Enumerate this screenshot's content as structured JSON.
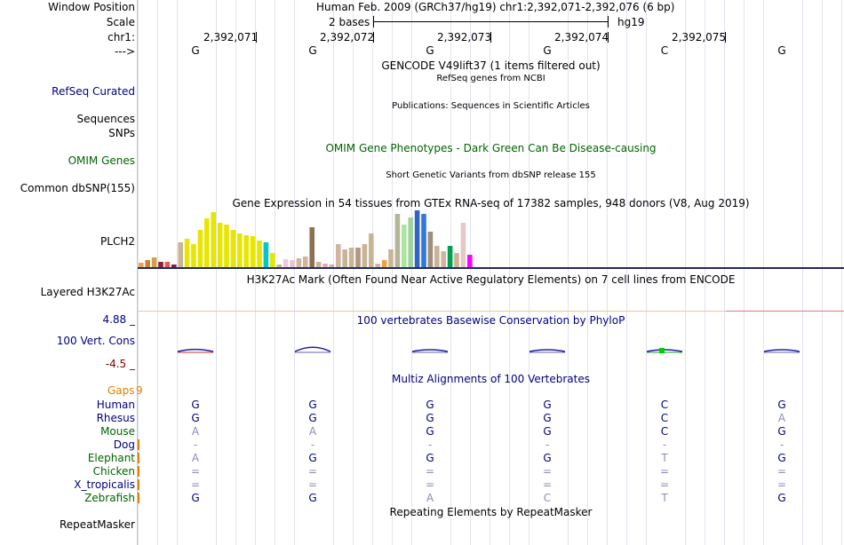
{
  "header": {
    "window_position_label": "Window Position",
    "window_position_value": "Human Feb. 2009 (GRCh37/hg19)   chr1:2,392,071-2,392,076 (6 bp)",
    "scale_label": "Scale",
    "scale_value": "2 bases",
    "scale_assembly": "hg19",
    "chrom_label": "chr1:",
    "arrow_label": "--->",
    "positions": [
      "2,392,071",
      "2,392,072",
      "2,392,073",
      "2,392,074",
      "2,392,075"
    ],
    "reference_bases": [
      "G",
      "G",
      "G",
      "G",
      "C",
      "G"
    ]
  },
  "tracks": {
    "gencode_title": "GENCODE V49lift37 (1 items filtered out)",
    "refseq_title": "RefSeq genes from NCBI",
    "refseq_label": "RefSeq Curated",
    "publications_title": "Publications: Sequences in Scientific Articles",
    "sequences_label": "Sequences",
    "snps_label": "SNPs",
    "omim_title": "OMIM Gene Phenotypes - Dark Green Can Be Disease-causing",
    "omim_label": "OMIM Genes",
    "dbsnp_title": "Short Genetic Variants from dbSNP release 155",
    "dbsnp_label": "Common dbSNP(155)",
    "gtex_title": "Gene Expression in 54 tissues from GTEx RNA-seq of 17382 samples, 948 donors (V8, Aug 2019)",
    "gtex_label": "PLCH2",
    "h3k27_title": "H3K27Ac Mark (Often Found Near Active Regulatory Elements) on 7 cell lines from ENCODE",
    "h3k27_label": "Layered H3K27Ac",
    "cons_max": "4.88 _",
    "cons_title": "100 vertebrates Basewise Conservation by PhyloP",
    "cons_label": "100 Vert. Cons",
    "cons_min": "-4.5 _",
    "multiz_title": "Multiz Alignments of 100 Vertebrates",
    "gaps_label": "Gaps",
    "gaps_value": "9",
    "repeat_title": "Repeating Elements by RepeatMasker",
    "repeat_label": "RepeatMasker"
  },
  "species": [
    {
      "name": "Human",
      "color": "#000080",
      "bases": [
        "G",
        "G",
        "G",
        "G",
        "C",
        "G"
      ]
    },
    {
      "name": "Rhesus",
      "color": "#000080",
      "bases": [
        "G",
        "G",
        "G",
        "G",
        "C",
        "A"
      ]
    },
    {
      "name": "Mouse",
      "color": "#006400",
      "bases": [
        "A",
        "A",
        "G",
        "G",
        "C",
        "G"
      ]
    },
    {
      "name": "Dog",
      "color": "#000080",
      "bases": [
        "-",
        "-",
        "-",
        "-",
        "-",
        "-"
      ]
    },
    {
      "name": "Elephant",
      "color": "#006400",
      "bases": [
        "A",
        "G",
        "G",
        "G",
        "T",
        "G"
      ]
    },
    {
      "name": "Chicken",
      "color": "#006400",
      "bases": [
        "=",
        "=",
        "=",
        "=",
        "=",
        "="
      ]
    },
    {
      "name": "X_tropicalis",
      "color": "#000080",
      "bases": [
        "=",
        "=",
        "=",
        "=",
        "=",
        "="
      ]
    },
    {
      "name": "Zebrafish",
      "color": "#006400",
      "bases": [
        "G",
        "G",
        "A",
        "C",
        "T",
        "G"
      ]
    }
  ],
  "colors": {
    "track_link": "#000080",
    "omim_green": "#006400",
    "gaps_orange": "#e08000",
    "cons_min": "#800000",
    "muted_base": "#8c8cb4"
  },
  "chart_data": {
    "type": "bar",
    "title": "Gene Expression in 54 tissues from GTEx RNA-seq of 17382 samples, 948 donors (V8, Aug 2019)",
    "ylim": [
      0,
      66
    ],
    "values": [
      5,
      8,
      11,
      6,
      6,
      3,
      28,
      32,
      26,
      42,
      55,
      62,
      50,
      48,
      42,
      38,
      36,
      35,
      30,
      28,
      16,
      3,
      9,
      8,
      10,
      12,
      45,
      6,
      4,
      3,
      26,
      20,
      22,
      22,
      26,
      38,
      4,
      8,
      20,
      60,
      48,
      56,
      64,
      60,
      40,
      24,
      18,
      24,
      16,
      50,
      14
    ],
    "colors": [
      "#f0a046",
      "#c8823c",
      "#d2a048",
      "#8c1e3c",
      "#e65a50",
      "#7c1e48",
      "#c8b496",
      "#e6e600",
      "#e6e600",
      "#e6e600",
      "#e6e600",
      "#e6e600",
      "#e6e600",
      "#e6e600",
      "#e6e600",
      "#e6e600",
      "#e6e600",
      "#e6e600",
      "#e6e600",
      "#00c8c8",
      "#e6e600",
      "#c8b496",
      "#f0c8dc",
      "#e6c8c8",
      "#d2b4a0",
      "#d2b4a0",
      "#8c7050",
      "#c8b496",
      "#f0a0c8",
      "#c8b496",
      "#d2b4a0",
      "#c8b496",
      "#c8b496",
      "#b49680",
      "#c8b496",
      "#c8b496",
      "#d2b4a0",
      "#f0a046",
      "#c8b496",
      "#b4b496",
      "#aae6a0",
      "#a0d2a0",
      "#3264c8",
      "#3278dc",
      "#a08c78",
      "#c8b496",
      "#d2b4a0",
      "#00a050",
      "#c8b496",
      "#e6c8c8",
      "#ff00ff"
    ]
  },
  "conservation": {
    "values": [
      0.6,
      1.2,
      0.5,
      0.3,
      0.2,
      0.3
    ]
  }
}
